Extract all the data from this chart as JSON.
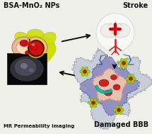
{
  "bg_color": "#f0f0eb",
  "title_bsa": "BSA-MnO₂ NPs",
  "title_stroke": "Stroke",
  "title_mr": "MR Permeability Imaging",
  "title_dbb": "Damaged BBB",
  "title_fontsize": 7,
  "fig_width": 2.15,
  "fig_height": 1.89,
  "dpi": 100,
  "arrow_color": "#111111",
  "nanoparticle_color": "#cce000",
  "nanoparticle_core_color": "#cc2222",
  "cross_color": "#cc0000",
  "mri_bg": "#080808",
  "green_spots_color": "#99cc00",
  "cyan_arc_color": "#00bbaa",
  "purple_fill": "#9090cc",
  "damaged_outer": "#c8ccd8",
  "pink_inner": "#f0c0b0"
}
